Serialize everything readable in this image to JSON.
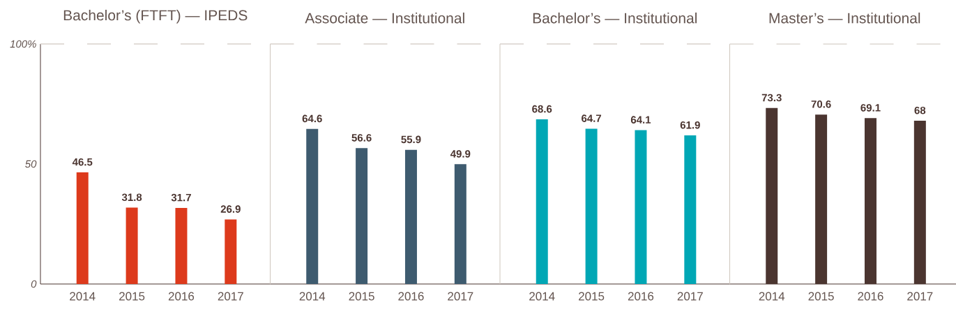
{
  "chart_data": [
    {
      "type": "bar",
      "title": "Bachelor’s (FTFT) — IPEDS",
      "categories": [
        "2014",
        "2015",
        "2016",
        "2017"
      ],
      "values": [
        46.5,
        31.8,
        31.7,
        26.9
      ],
      "color": "#dd3a1c",
      "data_labels": true,
      "ylim": [
        0,
        100
      ],
      "yticks": [
        0,
        50,
        {
          "value": 100,
          "label": "100%"
        }
      ],
      "ref_lines": [
        {
          "axis": "y",
          "value": 100,
          "color": "#d9d2cc",
          "line_style": "dashed"
        }
      ]
    },
    {
      "type": "bar",
      "title": "Associate — Institutional",
      "categories": [
        "2014",
        "2015",
        "2016",
        "2017"
      ],
      "values": [
        64.6,
        56.6,
        55.9,
        49.9
      ],
      "color": "#3e5b6f",
      "data_labels": true,
      "ylim": [
        0,
        100
      ],
      "yticks": [
        0,
        50,
        100
      ],
      "tick_labels": "x",
      "ref_lines": [
        {
          "axis": "y",
          "value": 100,
          "color": "#d9d2cc",
          "line_style": "dashed"
        }
      ]
    },
    {
      "type": "bar",
      "title": "Bachelor’s — Institutional",
      "categories": [
        "2014",
        "2015",
        "2016",
        "2017"
      ],
      "values": [
        68.6,
        64.7,
        64.1,
        61.9
      ],
      "color": "#00a7b5",
      "data_labels": true,
      "ylim": [
        0,
        100
      ],
      "yticks": [
        0,
        50,
        100
      ],
      "tick_labels": "x",
      "ref_lines": [
        {
          "axis": "y",
          "value": 100,
          "color": "#d9d2cc",
          "line_style": "dashed"
        }
      ]
    },
    {
      "type": "bar",
      "title": "Master’s — Institutional",
      "categories": [
        "2014",
        "2015",
        "2016",
        "2017"
      ],
      "values": [
        73.3,
        70.6,
        69.1,
        68
      ],
      "color": "#4b3530",
      "data_labels": true,
      "ylim": [
        0,
        100
      ],
      "yticks": [
        0,
        50,
        100
      ],
      "tick_labels": "x",
      "ref_lines": [
        {
          "axis": "y",
          "value": 100,
          "color": "#d9d2cc",
          "line_style": "dashed"
        }
      ]
    }
  ]
}
